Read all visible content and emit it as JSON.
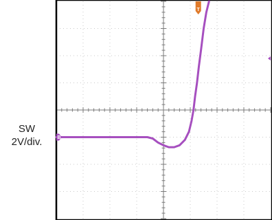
{
  "chart_data": {
    "type": "line",
    "title": "",
    "xlabel": "",
    "ylabel": "",
    "channel_label": "SW",
    "scale_label": "2V/div.",
    "channel_marker": "B",
    "trigger_marker": "T",
    "divisions": {
      "x": 8,
      "y": 8
    },
    "grid": true,
    "xlim": [
      0,
      8
    ],
    "ylim": [
      -4,
      4
    ],
    "series": [
      {
        "color": "#a64fbf",
        "points": [
          [
            0.0,
            -1.0
          ],
          [
            0.5,
            -1.0
          ],
          [
            1.0,
            -1.0
          ],
          [
            1.5,
            -1.0
          ],
          [
            2.0,
            -1.0
          ],
          [
            2.5,
            -1.0
          ],
          [
            3.0,
            -1.0
          ],
          [
            3.4,
            -1.0
          ],
          [
            3.6,
            -1.05
          ],
          [
            3.8,
            -1.2
          ],
          [
            4.0,
            -1.3
          ],
          [
            4.2,
            -1.37
          ],
          [
            4.4,
            -1.37
          ],
          [
            4.6,
            -1.3
          ],
          [
            4.8,
            -1.1
          ],
          [
            4.95,
            -0.8
          ],
          [
            5.05,
            -0.4
          ],
          [
            5.12,
            0.0
          ],
          [
            5.18,
            0.5
          ],
          [
            5.25,
            1.0
          ],
          [
            5.32,
            1.6
          ],
          [
            5.4,
            2.2
          ],
          [
            5.5,
            3.0
          ],
          [
            5.6,
            3.6
          ],
          [
            5.7,
            4.0
          ]
        ]
      }
    ],
    "colors": {
      "trace": "#a64fbf",
      "trigger": "#e07a2a",
      "grid": "#c8c8c8",
      "frame": "#000000",
      "axis": "#7a7a7a"
    }
  }
}
